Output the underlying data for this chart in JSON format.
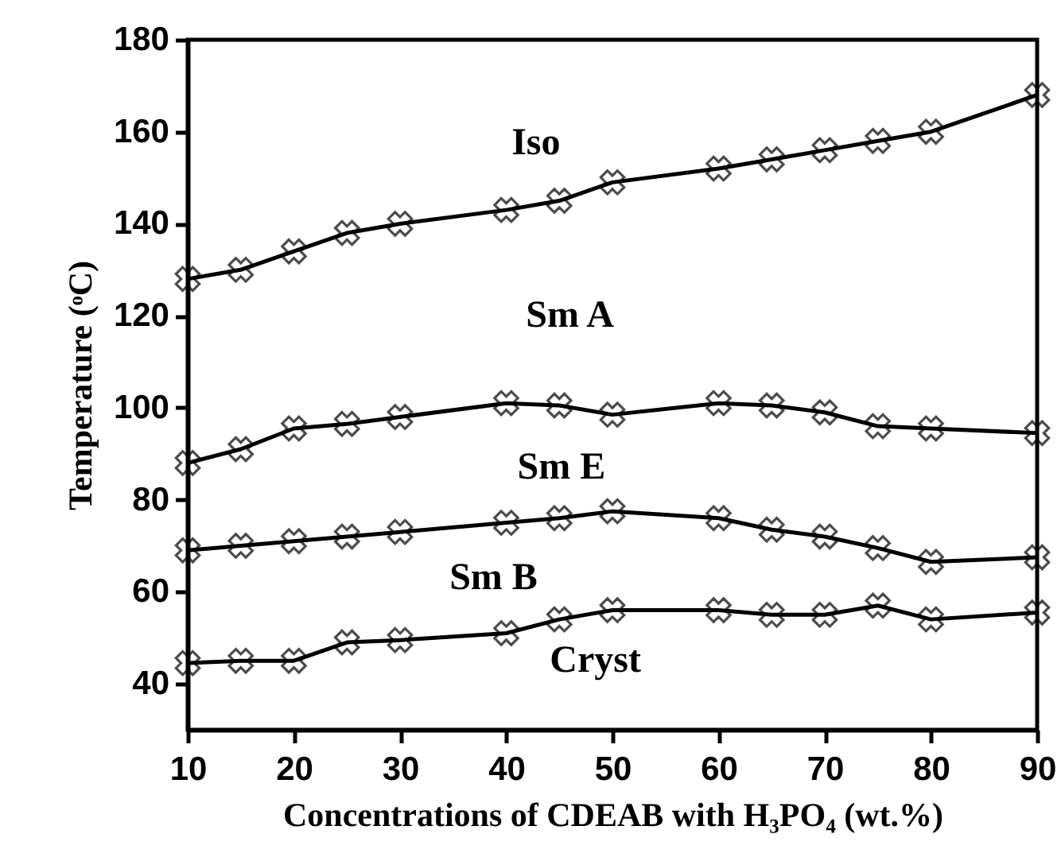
{
  "chart_data": {
    "type": "line",
    "xlabel": "Concentrations of CDEAB with H₃PO₄ (wt.%)",
    "ylabel": "Temperature (ᵒC)",
    "x": [
      10,
      15,
      20,
      25,
      30,
      40,
      45,
      50,
      60,
      65,
      70,
      75,
      80,
      90
    ],
    "series": [
      {
        "color": "#000000",
        "values": [
          128,
          130,
          134,
          138,
          140,
          143,
          145,
          149,
          152,
          154,
          156,
          158,
          160,
          168
        ]
      },
      {
        "color": "#000000",
        "values": [
          88,
          91,
          95.5,
          96.5,
          98,
          101,
          100.5,
          98.5,
          101,
          100.5,
          99,
          96,
          95.5,
          94.5
        ]
      },
      {
        "color": "#000000",
        "values": [
          69,
          70,
          71,
          72,
          73,
          75,
          76,
          77.5,
          76,
          73.5,
          72,
          69.5,
          66.5,
          67.5
        ]
      },
      {
        "color": "#000000",
        "values": [
          44.5,
          45,
          45,
          49,
          49.5,
          51,
          54,
          56,
          56,
          55,
          55,
          57,
          54,
          55.5
        ]
      }
    ],
    "annotations": [
      "Iso",
      "Sm A",
      "Sm E",
      "Sm B",
      "Cryst"
    ],
    "xlim": [
      10,
      90
    ],
    "xticks": [
      10,
      20,
      30,
      40,
      50,
      60,
      70,
      80,
      90
    ],
    "ylim": [
      30,
      180
    ],
    "yticks": [
      40,
      60,
      80,
      100,
      120,
      140,
      160,
      180
    ],
    "grid": false,
    "legend": false,
    "marker": "cross",
    "line_style": "solid"
  }
}
